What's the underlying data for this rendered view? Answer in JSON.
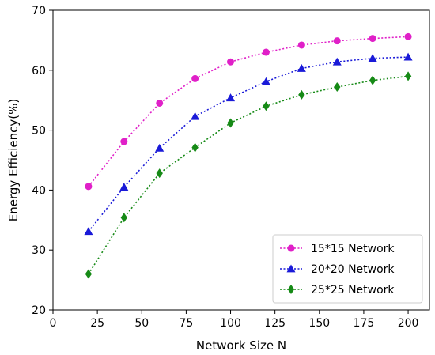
{
  "chart_data": {
    "type": "line",
    "title": "",
    "xlabel": "Network Size N",
    "ylabel": "Energy Efficiency(%)",
    "xlim": [
      0,
      212
    ],
    "ylim": [
      20,
      70
    ],
    "xticks": [
      0,
      25,
      50,
      75,
      100,
      125,
      150,
      175,
      200
    ],
    "yticks": [
      20,
      30,
      40,
      50,
      60,
      70
    ],
    "grid": false,
    "legend_position": "bottom-right",
    "x": [
      20,
      40,
      60,
      80,
      100,
      120,
      140,
      160,
      180,
      200
    ],
    "series": [
      {
        "name": "15*15 Network",
        "color": "#e020c8",
        "marker": "circle",
        "line_style": "dotted",
        "values": [
          40.6,
          48.1,
          54.5,
          58.6,
          61.4,
          63.0,
          64.2,
          64.9,
          65.3,
          65.6
        ]
      },
      {
        "name": "20*20 Network",
        "color": "#1a1ad8",
        "marker": "triangle",
        "line_style": "dotted",
        "values": [
          33.1,
          40.5,
          47.0,
          52.3,
          55.4,
          58.1,
          60.3,
          61.4,
          62.0,
          62.2
        ]
      },
      {
        "name": "25*25 Network",
        "color": "#168a16",
        "marker": "diamond",
        "line_style": "dotted",
        "values": [
          26.0,
          35.4,
          42.8,
          47.1,
          51.2,
          54.0,
          55.9,
          57.2,
          58.3,
          59.0
        ]
      }
    ]
  }
}
